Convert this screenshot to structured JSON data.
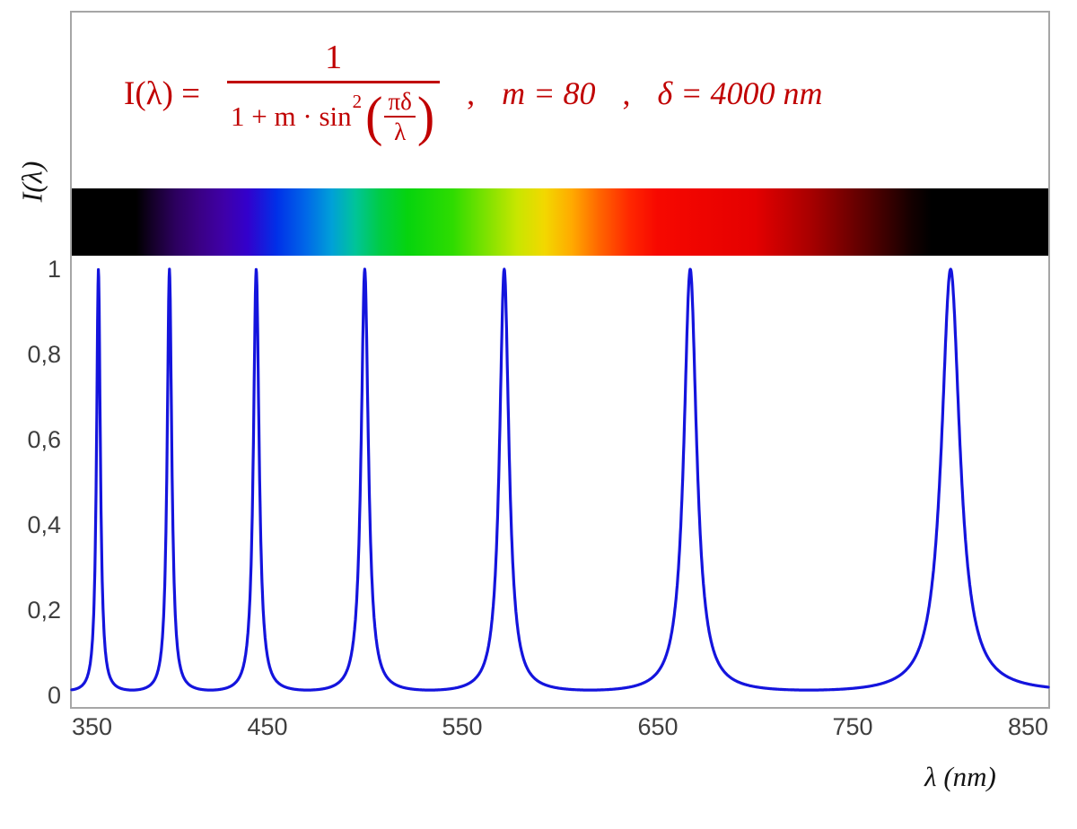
{
  "formula": {
    "lhs": "I(λ) =",
    "numerator": "1",
    "den_prefix": "1 + m · sin",
    "den_exponent": "2",
    "open_paren": "(",
    "close_paren": ")",
    "inner_numerator": "πδ",
    "inner_denominator": "λ",
    "sep1": ",",
    "param_m": "m = 80",
    "sep2": ",",
    "param_delta": "δ = 4000 nm"
  },
  "axes": {
    "y_label": "I(λ)",
    "x_label": "λ  (nm)",
    "y_ticks": [
      "1",
      "0,8",
      "0,6",
      "0,4",
      "0,2",
      "0"
    ],
    "x_ticks": [
      "350",
      "450",
      "550",
      "650",
      "750",
      "850"
    ]
  },
  "chart_data": {
    "type": "line",
    "title": "Airy transmission function I(λ) = 1 / (1 + m·sin²(πδ/λ)) with m = 80, δ = 4000 nm",
    "parameters": {
      "m": 80,
      "delta_nm": 4000
    },
    "x_range_nm": [
      350,
      850
    ],
    "y_range": [
      0,
      1
    ],
    "xlabel": "λ (nm)",
    "ylabel": "I(λ)",
    "x_ticks_nm": [
      350,
      450,
      550,
      650,
      750,
      850
    ],
    "y_ticks": [
      0,
      0.2,
      0.4,
      0.6,
      0.8,
      1
    ],
    "peak_wavelengths_nm": [
      363.6,
      400,
      444.4,
      500,
      571.4,
      666.7,
      800
    ],
    "peak_orders": [
      11,
      10,
      9,
      8,
      7,
      6,
      5
    ],
    "peak_intensity": 1,
    "min_intensity": 0.0123,
    "sample_step_nm": 0.2,
    "curve_color": "#1414dd",
    "grid": false,
    "legend": false
  },
  "spectrum_bar": {
    "description": "visible-light spectrum strip aligned with the wavelength axis",
    "range_nm": [
      350,
      850
    ],
    "stops": [
      {
        "nm": 350,
        "color": "#000000"
      },
      {
        "nm": 383,
        "color": "#000000"
      },
      {
        "nm": 392,
        "color": "#16002c"
      },
      {
        "nm": 403,
        "color": "#2c005e"
      },
      {
        "nm": 415,
        "color": "#3a0084"
      },
      {
        "nm": 428,
        "color": "#3f00a8"
      },
      {
        "nm": 440,
        "color": "#3300cc"
      },
      {
        "nm": 455,
        "color": "#0030e8"
      },
      {
        "nm": 470,
        "color": "#0068e8"
      },
      {
        "nm": 483,
        "color": "#00a0d8"
      },
      {
        "nm": 495,
        "color": "#00c49a"
      },
      {
        "nm": 508,
        "color": "#00cc44"
      },
      {
        "nm": 522,
        "color": "#06d40e"
      },
      {
        "nm": 545,
        "color": "#2edc00"
      },
      {
        "nm": 562,
        "color": "#7ce200"
      },
      {
        "nm": 578,
        "color": "#c8e600"
      },
      {
        "nm": 592,
        "color": "#f2d800"
      },
      {
        "nm": 606,
        "color": "#ffaa00"
      },
      {
        "nm": 620,
        "color": "#ff6600"
      },
      {
        "nm": 636,
        "color": "#ff2600"
      },
      {
        "nm": 650,
        "color": "#f70800"
      },
      {
        "nm": 700,
        "color": "#e40000"
      },
      {
        "nm": 728,
        "color": "#a80000"
      },
      {
        "nm": 758,
        "color": "#560000"
      },
      {
        "nm": 780,
        "color": "#140000"
      },
      {
        "nm": 790,
        "color": "#000000"
      },
      {
        "nm": 850,
        "color": "#000000"
      }
    ]
  },
  "theme": {
    "formula_red": "#c00000",
    "curve_blue": "#1414dd",
    "border_gray": "#a6a6a6",
    "tick_gray": "#3f3f3f"
  }
}
